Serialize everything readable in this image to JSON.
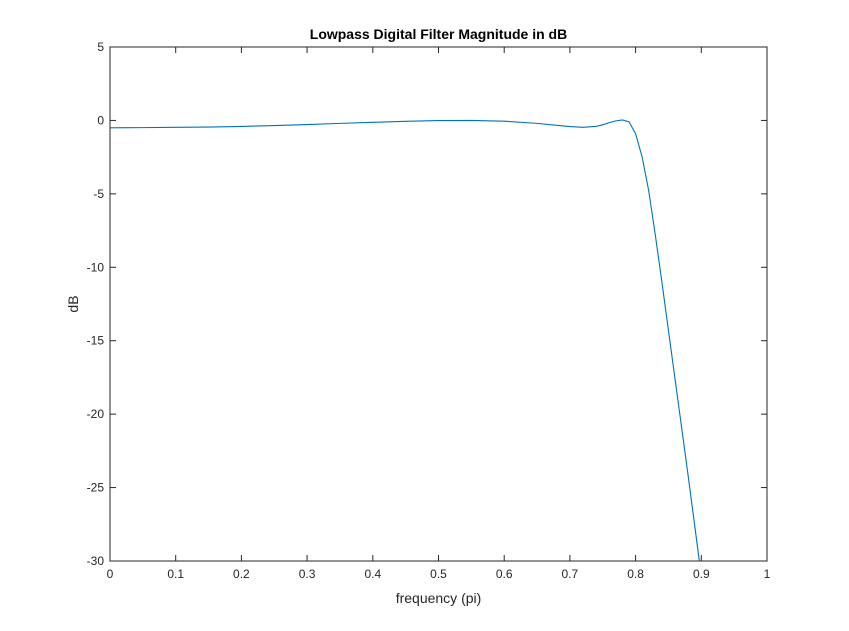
{
  "chart_data": {
    "type": "line",
    "title": "Lowpass Digital Filter Magnitude in dB",
    "xlabel": "frequency (pi)",
    "ylabel": "dB",
    "xlim": [
      0,
      1
    ],
    "ylim": [
      -30,
      5
    ],
    "xticks": [
      0,
      0.1,
      0.2,
      0.3,
      0.4,
      0.5,
      0.6,
      0.7,
      0.8,
      0.9,
      1
    ],
    "xtick_labels": [
      "0",
      "0.1",
      "0.2",
      "0.3",
      "0.4",
      "0.5",
      "0.6",
      "0.7",
      "0.8",
      "0.9",
      "1"
    ],
    "yticks": [
      5,
      0,
      -5,
      -10,
      -15,
      -20,
      -25,
      -30
    ],
    "ytick_labels": [
      "5",
      "0",
      "-5",
      "-10",
      "-15",
      "-20",
      "-25",
      "-30"
    ],
    "grid": false,
    "legend": "none",
    "colors": {
      "line": "#0072BD",
      "axes": "#262626",
      "background": "#ffffff"
    },
    "series": [
      {
        "x": [
          0,
          0.05,
          0.1,
          0.15,
          0.2,
          0.25,
          0.3,
          0.35,
          0.4,
          0.45,
          0.5,
          0.55,
          0.6,
          0.65,
          0.68,
          0.7,
          0.72,
          0.74,
          0.75,
          0.76,
          0.77,
          0.78,
          0.79,
          0.8,
          0.81,
          0.82,
          0.83,
          0.84,
          0.85,
          0.86,
          0.87,
          0.88,
          0.89,
          0.897
        ],
        "y": [
          -0.5,
          -0.49,
          -0.47,
          -0.45,
          -0.41,
          -0.35,
          -0.28,
          -0.2,
          -0.13,
          -0.06,
          -0.01,
          0.0,
          -0.05,
          -0.2,
          -0.33,
          -0.42,
          -0.47,
          -0.4,
          -0.3,
          -0.15,
          -0.03,
          0.03,
          -0.1,
          -0.9,
          -2.5,
          -4.8,
          -7.8,
          -11.0,
          -14.3,
          -17.6,
          -20.9,
          -24.2,
          -27.6,
          -30.0
        ]
      }
    ]
  }
}
